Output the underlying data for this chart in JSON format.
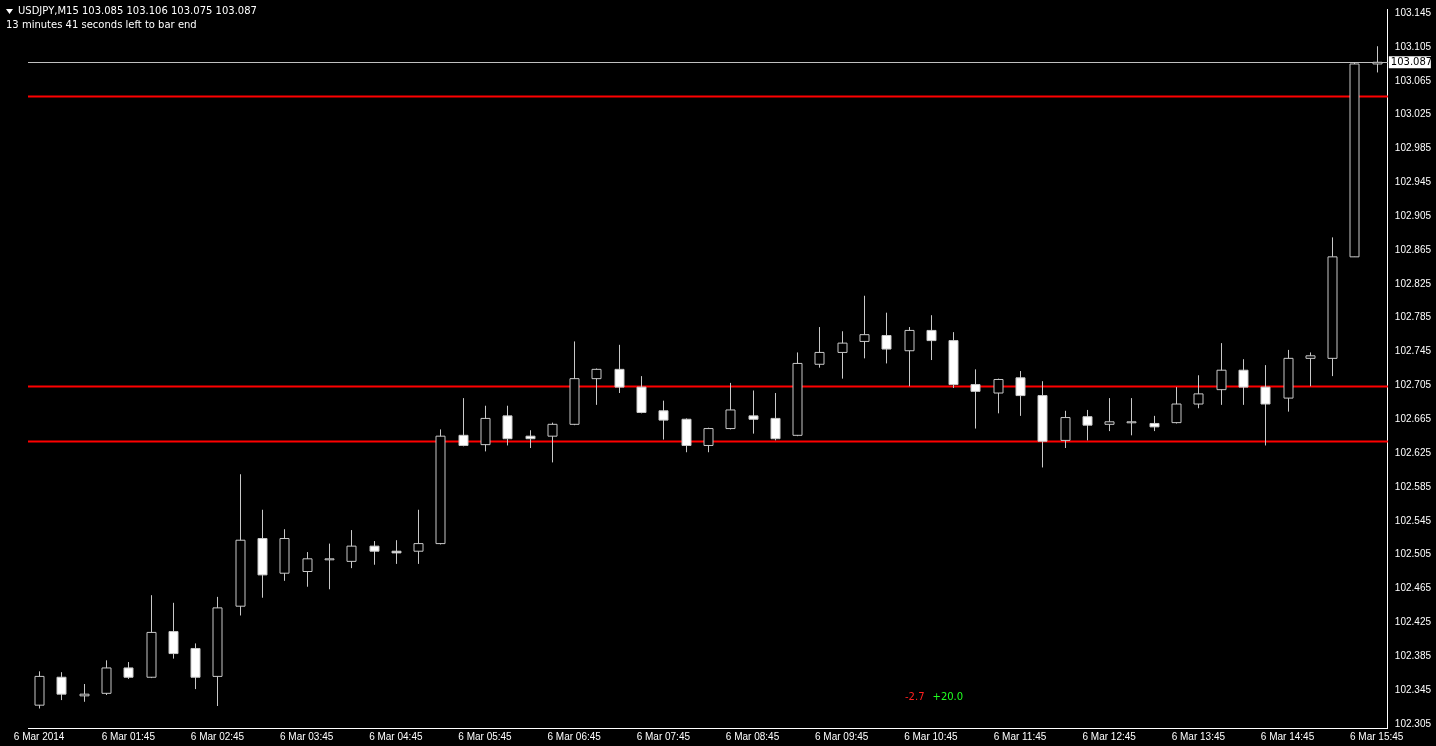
{
  "chart_data": {
    "type": "candlestick",
    "title": "USDJPY,M15  103.085 103.106 103.075 103.087",
    "subtitle": "13 minutes 41 seconds left to bar end",
    "categories": [
      "6 Mar 2014",
      null,
      null,
      null,
      "6 Mar 01:45",
      null,
      null,
      null,
      "6 Mar 02:45",
      null,
      null,
      null,
      "6 Mar 03:45",
      null,
      null,
      null,
      "6 Mar 04:45",
      null,
      null,
      null,
      "6 Mar 05:45",
      null,
      null,
      null,
      "6 Mar 06:45",
      null,
      null,
      null,
      "6 Mar 07:45",
      null,
      null,
      null,
      "6 Mar 08:45",
      null,
      null,
      null,
      "6 Mar 09:45",
      null,
      null,
      null,
      "6 Mar 10:45",
      null,
      null,
      null,
      "6 Mar 11:45",
      null,
      null,
      null,
      "6 Mar 12:45",
      null,
      null,
      null,
      "6 Mar 13:45",
      null,
      null,
      null,
      "6 Mar 14:45",
      null,
      null,
      null,
      "6 Mar 15:45"
    ],
    "ohlc": [
      [
        102.327,
        102.367,
        102.323,
        102.361
      ],
      [
        102.36,
        102.366,
        102.333,
        102.34
      ],
      [
        102.338,
        102.352,
        102.331,
        102.34
      ],
      [
        102.341,
        102.38,
        102.339,
        102.371
      ],
      [
        102.371,
        102.378,
        102.358,
        102.36
      ],
      [
        102.36,
        102.457,
        102.359,
        102.413
      ],
      [
        102.414,
        102.448,
        102.382,
        102.388
      ],
      [
        102.394,
        102.4,
        102.346,
        102.36
      ],
      [
        102.361,
        102.455,
        102.326,
        102.442
      ],
      [
        102.444,
        102.6,
        102.433,
        102.522
      ],
      [
        102.524,
        102.558,
        102.454,
        102.481
      ],
      [
        102.483,
        102.535,
        102.474,
        102.524
      ],
      [
        102.485,
        102.508,
        102.467,
        102.5
      ],
      [
        102.5,
        102.518,
        102.464,
        102.5
      ],
      [
        102.497,
        102.534,
        102.489,
        102.515
      ],
      [
        102.515,
        102.521,
        102.493,
        102.509
      ],
      [
        102.509,
        102.522,
        102.494,
        102.507
      ],
      [
        102.509,
        102.558,
        102.494,
        102.518
      ],
      [
        102.518,
        102.653,
        102.517,
        102.645
      ],
      [
        102.646,
        102.69,
        102.633,
        102.634
      ],
      [
        102.635,
        102.681,
        102.627,
        102.666
      ],
      [
        102.669,
        102.681,
        102.634,
        102.642
      ],
      [
        102.645,
        102.652,
        102.631,
        102.642
      ],
      [
        102.645,
        102.661,
        102.614,
        102.659
      ],
      [
        102.659,
        102.757,
        102.658,
        102.713
      ],
      [
        102.713,
        102.725,
        102.682,
        102.724
      ],
      [
        102.724,
        102.753,
        102.696,
        102.703
      ],
      [
        102.703,
        102.716,
        102.672,
        102.673
      ],
      [
        102.675,
        102.687,
        102.641,
        102.664
      ],
      [
        102.665,
        102.666,
        102.626,
        102.634
      ],
      [
        102.634,
        102.655,
        102.626,
        102.654
      ],
      [
        102.654,
        102.708,
        102.653,
        102.676
      ],
      [
        102.669,
        102.699,
        102.648,
        102.665
      ],
      [
        102.666,
        102.696,
        102.64,
        102.642
      ],
      [
        102.646,
        102.744,
        102.645,
        102.731
      ],
      [
        102.73,
        102.774,
        102.726,
        102.744
      ],
      [
        102.744,
        102.769,
        102.713,
        102.755
      ],
      [
        102.757,
        102.811,
        102.737,
        102.765
      ],
      [
        102.764,
        102.791,
        102.731,
        102.748
      ],
      [
        102.746,
        102.774,
        102.704,
        102.77
      ],
      [
        102.77,
        102.788,
        102.735,
        102.758
      ],
      [
        102.758,
        102.768,
        102.702,
        102.706
      ],
      [
        102.706,
        102.724,
        102.654,
        102.698
      ],
      [
        102.696,
        102.713,
        102.672,
        102.712
      ],
      [
        102.714,
        102.722,
        102.669,
        102.693
      ],
      [
        102.693,
        102.71,
        102.608,
        102.639
      ],
      [
        102.64,
        102.675,
        102.631,
        102.667
      ],
      [
        102.668,
        102.676,
        102.64,
        102.658
      ],
      [
        102.659,
        102.69,
        102.651,
        102.662
      ],
      [
        102.662,
        102.69,
        102.646,
        102.662
      ],
      [
        102.66,
        102.669,
        102.651,
        102.656
      ],
      [
        102.661,
        102.703,
        102.66,
        102.683
      ],
      [
        102.683,
        102.717,
        102.678,
        102.695
      ],
      [
        102.7,
        102.755,
        102.682,
        102.723
      ],
      [
        102.723,
        102.736,
        102.682,
        102.703
      ],
      [
        102.703,
        102.729,
        102.634,
        102.683
      ],
      [
        102.69,
        102.747,
        102.674,
        102.737
      ],
      [
        102.737,
        102.744,
        102.704,
        102.74
      ],
      [
        102.737,
        102.88,
        102.716,
        102.857
      ],
      [
        102.857,
        103.087,
        102.857,
        103.085
      ],
      [
        103.085,
        103.106,
        103.075,
        103.087
      ]
    ],
    "ylim": [
      102.3,
      103.15
    ],
    "yticks": [
      102.305,
      102.345,
      102.385,
      102.425,
      102.465,
      102.505,
      102.545,
      102.585,
      102.625,
      102.665,
      102.705,
      102.745,
      102.785,
      102.825,
      102.865,
      102.905,
      102.945,
      102.985,
      103.025,
      103.065,
      103.105,
      103.145
    ],
    "ref_lines": [
      {
        "axis": "y",
        "value": 103.047,
        "color": "#ff0000"
      },
      {
        "axis": "y",
        "value": 102.704,
        "color": "#ff0000"
      },
      {
        "axis": "y",
        "value": 102.639,
        "color": "#ff0000"
      },
      {
        "axis": "y",
        "value": 103.087,
        "label": "103.087",
        "color": "#c0c0c0"
      }
    ],
    "annotations": [
      "-2.7",
      "+20.0"
    ],
    "grid": false,
    "legend": false
  }
}
